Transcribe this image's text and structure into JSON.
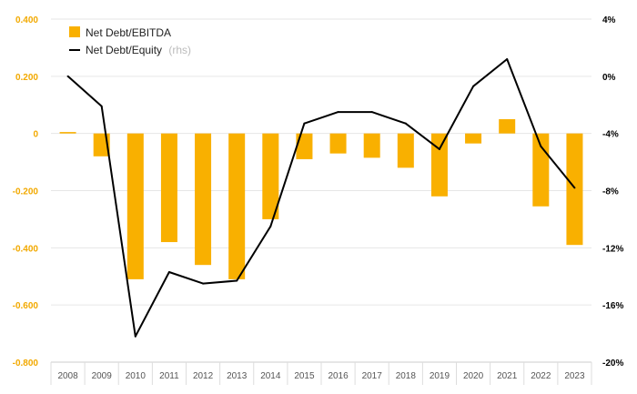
{
  "chart_data": {
    "type": "bar",
    "categories": [
      "2008",
      "2009",
      "2010",
      "2011",
      "2012",
      "2013",
      "2014",
      "2015",
      "2016",
      "2017",
      "2018",
      "2019",
      "2020",
      "2021",
      "2022",
      "2023"
    ],
    "series": [
      {
        "name": "Net Debt/EBITDA",
        "type": "bar",
        "axis": "left",
        "color": "#f9b000",
        "values": [
          0.005,
          -0.08,
          -0.51,
          -0.38,
          -0.46,
          -0.51,
          -0.3,
          -0.09,
          -0.07,
          -0.085,
          -0.12,
          -0.22,
          -0.035,
          0.05,
          -0.255,
          -0.39
        ]
      },
      {
        "name": "Net Debt/Equity",
        "name_note": "(rhs)",
        "type": "line",
        "axis": "right",
        "color": "#000000",
        "values": [
          0.0,
          -2.1,
          -18.2,
          -13.7,
          -14.5,
          -14.3,
          -10.5,
          -3.3,
          -2.5,
          -2.5,
          -3.3,
          -5.1,
          -0.7,
          1.2,
          -4.9,
          -7.8
        ]
      }
    ],
    "y_left": {
      "ylim": [
        -0.8,
        0.4
      ],
      "ticks": [
        "0.400",
        "0.200",
        "0",
        "-0.200",
        "-0.400",
        "-0.600",
        "-0.800"
      ],
      "tick_values": [
        0.4,
        0.2,
        0,
        -0.2,
        -0.4,
        -0.6,
        -0.8
      ]
    },
    "y_right": {
      "ylim": [
        -20,
        4
      ],
      "ticks": [
        "4%",
        "0%",
        "-4%",
        "-8%",
        "-12%",
        "-16%",
        "-20%"
      ],
      "tick_values": [
        4,
        0,
        -4,
        -8,
        -12,
        -16,
        -20
      ]
    },
    "grid": true,
    "legend_position": "top-left"
  }
}
